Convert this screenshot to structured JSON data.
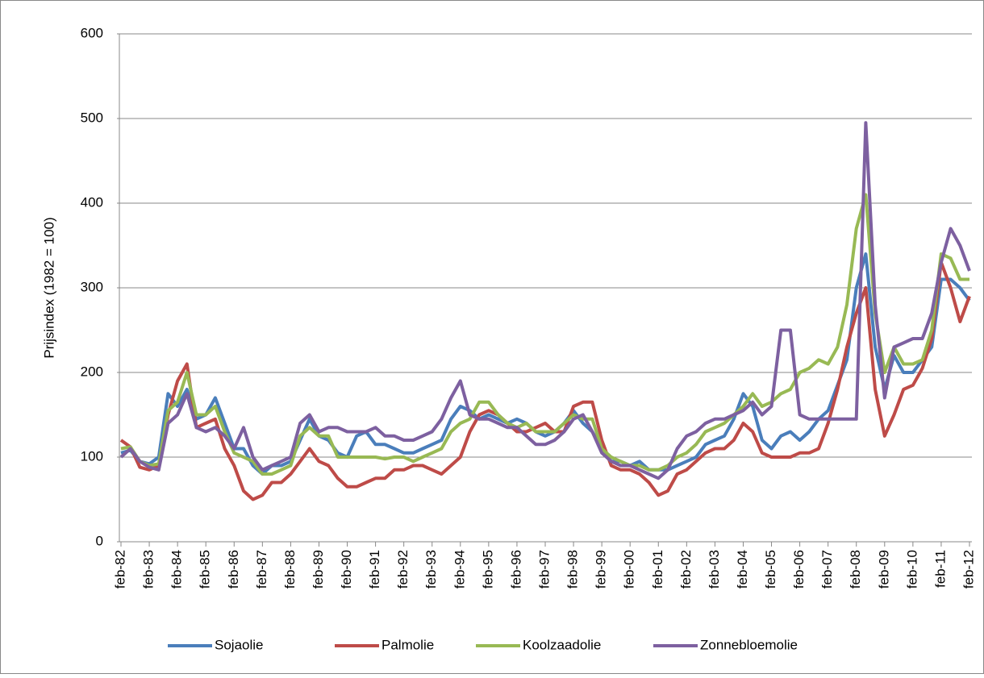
{
  "chart_data": {
    "type": "line",
    "y_label": "Prijsindex (1982 = 100)",
    "categories": [
      "feb-82",
      null,
      null,
      "feb-83",
      null,
      null,
      "feb-84",
      null,
      null,
      "feb-85",
      null,
      null,
      "feb-86",
      null,
      null,
      "feb-87",
      null,
      null,
      "feb-88",
      null,
      null,
      "feb-89",
      null,
      null,
      "feb-90",
      null,
      null,
      "feb-91",
      null,
      null,
      "feb-92",
      null,
      null,
      "feb-93",
      null,
      null,
      "feb-94",
      null,
      null,
      "feb-95",
      null,
      null,
      "feb-96",
      null,
      null,
      "feb-97",
      null,
      null,
      "feb-98",
      null,
      null,
      "feb-99",
      null,
      null,
      "feb-00",
      null,
      null,
      "feb-01",
      null,
      null,
      "feb-02",
      null,
      null,
      "feb-03",
      null,
      null,
      "feb-04",
      null,
      null,
      "feb-05",
      null,
      null,
      "feb-06",
      null,
      null,
      "feb-07",
      null,
      null,
      "feb-08",
      null,
      null,
      "feb-09",
      null,
      null,
      "feb-10",
      null,
      null,
      "feb-11",
      null,
      null,
      "feb-12"
    ],
    "series": [
      {
        "name": "Sojaolie",
        "color": "#4a7ebb",
        "values": [
          105,
          108,
          95,
          92,
          100,
          175,
          160,
          180,
          145,
          150,
          170,
          140,
          110,
          110,
          90,
          80,
          90,
          90,
          95,
          120,
          145,
          125,
          120,
          105,
          100,
          125,
          130,
          115,
          115,
          110,
          105,
          105,
          110,
          115,
          120,
          145,
          160,
          155,
          145,
          150,
          145,
          140,
          145,
          140,
          130,
          125,
          130,
          140,
          155,
          140,
          130,
          110,
          95,
          95,
          90,
          95,
          85,
          85,
          85,
          90,
          95,
          100,
          115,
          120,
          125,
          145,
          175,
          160,
          120,
          110,
          125,
          130,
          120,
          130,
          145,
          155,
          185,
          215,
          300,
          340,
          230,
          180,
          220,
          200,
          200,
          215,
          230,
          310,
          310,
          300,
          285
        ]
      },
      {
        "name": "Palmolie",
        "color": "#be4b48",
        "values": [
          120,
          112,
          88,
          85,
          90,
          150,
          190,
          210,
          135,
          140,
          145,
          110,
          90,
          60,
          50,
          55,
          70,
          70,
          80,
          95,
          110,
          95,
          90,
          75,
          65,
          65,
          70,
          75,
          75,
          85,
          85,
          90,
          90,
          85,
          80,
          90,
          100,
          130,
          150,
          155,
          150,
          140,
          130,
          130,
          135,
          140,
          130,
          130,
          160,
          165,
          165,
          120,
          90,
          85,
          85,
          80,
          70,
          55,
          60,
          80,
          85,
          95,
          105,
          110,
          110,
          120,
          140,
          130,
          105,
          100,
          100,
          100,
          105,
          105,
          110,
          140,
          180,
          230,
          270,
          300,
          180,
          125,
          150,
          180,
          185,
          205,
          240,
          330,
          300,
          260,
          290
        ]
      },
      {
        "name": "Koolzaadolie",
        "color": "#98b954",
        "values": [
          110,
          112,
          95,
          90,
          92,
          155,
          165,
          200,
          150,
          150,
          160,
          130,
          105,
          100,
          95,
          80,
          80,
          85,
          90,
          125,
          135,
          125,
          125,
          100,
          100,
          100,
          100,
          100,
          98,
          100,
          100,
          95,
          100,
          105,
          110,
          130,
          140,
          145,
          165,
          165,
          150,
          140,
          135,
          140,
          130,
          130,
          130,
          140,
          150,
          145,
          145,
          110,
          100,
          95,
          90,
          90,
          85,
          85,
          90,
          100,
          105,
          115,
          130,
          135,
          140,
          150,
          160,
          175,
          160,
          165,
          175,
          180,
          200,
          205,
          215,
          210,
          230,
          280,
          370,
          410,
          270,
          200,
          230,
          210,
          210,
          215,
          250,
          340,
          335,
          310,
          310
        ]
      },
      {
        "name": "Zonnebloemolie",
        "color": "#7d60a0",
        "values": [
          100,
          110,
          95,
          88,
          85,
          140,
          150,
          175,
          135,
          130,
          135,
          125,
          110,
          135,
          100,
          85,
          90,
          95,
          100,
          140,
          150,
          130,
          135,
          135,
          130,
          130,
          130,
          135,
          125,
          125,
          120,
          120,
          125,
          130,
          145,
          170,
          190,
          150,
          145,
          145,
          140,
          135,
          135,
          125,
          115,
          115,
          120,
          130,
          145,
          150,
          130,
          105,
          95,
          90,
          90,
          85,
          80,
          75,
          85,
          110,
          125,
          130,
          140,
          145,
          145,
          150,
          155,
          165,
          150,
          160,
          250,
          250,
          150,
          145,
          145,
          145,
          145,
          145,
          145,
          495,
          280,
          170,
          230,
          235,
          240,
          240,
          270,
          330,
          370,
          350,
          320
        ]
      }
    ],
    "ylim": [
      0,
      600
    ],
    "yticks": [
      0,
      100,
      200,
      300,
      400,
      500,
      600
    ],
    "grid": true,
    "legend": "bottom"
  }
}
